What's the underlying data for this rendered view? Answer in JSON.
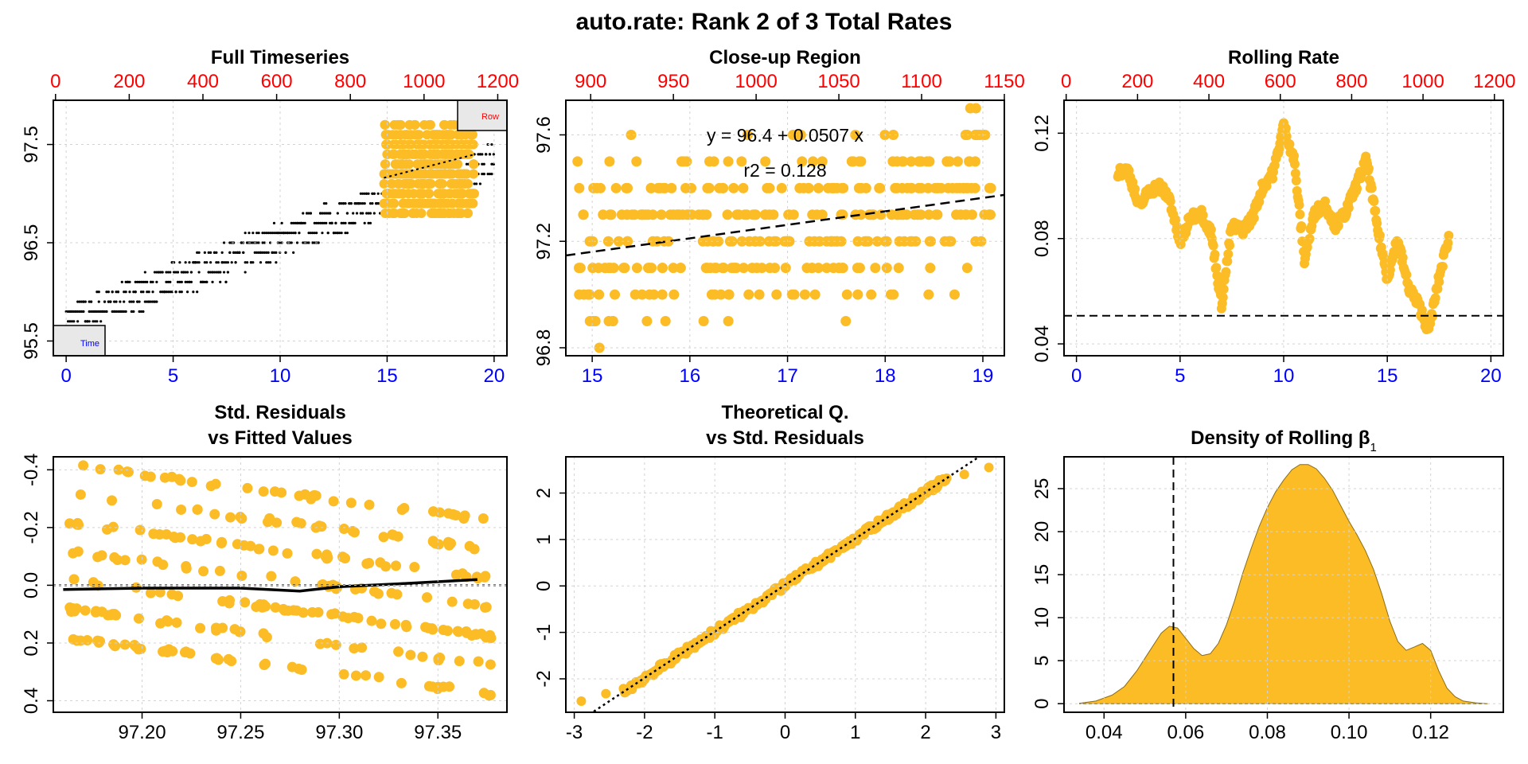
{
  "page": {
    "title": "auto.rate: Rank 2 of 3 Total Rates",
    "colors": {
      "points": "#FBBC26",
      "raw": "#000000",
      "top_axis": "#ff0000",
      "bottom_axis": "#0000ff",
      "grid": "#d3d3d3"
    }
  },
  "chart_data": [
    {
      "id": "full_timeseries",
      "type": "scatter",
      "title": "Full Timeseries",
      "xlabel": "",
      "ylabel": "",
      "xlim": [
        -0.6,
        20.6
      ],
      "ylim": [
        95.35,
        97.95
      ],
      "top_xlim": [
        -6,
        1225
      ],
      "xticks": [
        0,
        5,
        10,
        15,
        20
      ],
      "yticks": [
        95.5,
        96.5,
        97.5
      ],
      "top_ticks": [
        0,
        200,
        400,
        600,
        800,
        1000,
        1200
      ],
      "grid": true,
      "legend": {
        "top_right": "Row",
        "bottom_left": "Time"
      },
      "raw_series": {
        "name": "",
        "x_range": [
          0,
          20
        ],
        "y_start": 95.7,
        "y_end": 97.35,
        "y_spread": 0.35,
        "step": 0.1
      },
      "subset_series": {
        "name": "",
        "x_range": [
          14.85,
          19.1
        ],
        "y_range": [
          96.8,
          97.7
        ]
      },
      "fit_line": {
        "x": [
          14.85,
          19.1
        ],
        "y": [
          97.16,
          97.4
        ],
        "style": "dotted"
      }
    },
    {
      "id": "closeup_region",
      "type": "scatter",
      "title": "Close-up Region",
      "xlim": [
        14.73,
        19.22
      ],
      "ylim": [
        96.77,
        97.73
      ],
      "top_xlim": [
        885,
        1150
      ],
      "xticks": [
        15,
        16,
        17,
        18,
        19
      ],
      "yticks": [
        96.8,
        97.2,
        97.6
      ],
      "top_ticks": [
        900,
        950,
        1000,
        1050,
        1100,
        1150
      ],
      "grid": true,
      "x_range": [
        14.85,
        19.1
      ],
      "y_levels": [
        96.8,
        96.9,
        97.0,
        97.1,
        97.2,
        97.3,
        97.4,
        97.5,
        97.6,
        97.7
      ],
      "annotations": [
        "y = 96.4 + 0.0507 x",
        "r2 = 0.128"
      ],
      "fit_line": {
        "intercept": 96.4,
        "slope": 0.0507,
        "style": "dashed"
      }
    },
    {
      "id": "rolling_rate",
      "type": "line",
      "title": "Rolling Rate",
      "xlim": [
        -0.6,
        20.6
      ],
      "ylim": [
        0.0355,
        0.1325
      ],
      "top_xlim": [
        -6,
        1225
      ],
      "xticks": [
        0,
        5,
        10,
        15,
        20
      ],
      "yticks": [
        0.04,
        0.08,
        0.12
      ],
      "top_ticks": [
        0,
        200,
        400,
        600,
        800,
        1000,
        1200
      ],
      "grid": true,
      "x": [
        2.0,
        2.5,
        3.0,
        3.5,
        4.0,
        4.5,
        5.0,
        5.5,
        6.0,
        6.5,
        7.0,
        7.5,
        8.0,
        8.5,
        9.0,
        9.5,
        10.0,
        10.5,
        11.0,
        11.5,
        12.0,
        12.5,
        13.0,
        13.5,
        14.0,
        14.5,
        15.0,
        15.5,
        16.0,
        16.5,
        17.0,
        17.5,
        18.0
      ],
      "y": [
        0.105,
        0.106,
        0.092,
        0.098,
        0.1,
        0.095,
        0.078,
        0.088,
        0.09,
        0.082,
        0.055,
        0.085,
        0.083,
        0.088,
        0.1,
        0.105,
        0.123,
        0.11,
        0.072,
        0.09,
        0.093,
        0.085,
        0.09,
        0.1,
        0.11,
        0.085,
        0.065,
        0.08,
        0.062,
        0.055,
        0.045,
        0.065,
        0.082
      ],
      "reference_line": {
        "y": 0.0507,
        "style": "dashed"
      }
    },
    {
      "id": "residuals_vs_fitted",
      "type": "scatter",
      "title": "Std. Residuals\nvs Fitted Values",
      "xlim": [
        97.155,
        97.385
      ],
      "ylim": [
        0.44,
        -0.445
      ],
      "xticks": [
        97.2,
        97.25,
        97.3,
        97.35
      ],
      "xtick_labels": [
        "97.20",
        "97.25",
        "97.30",
        "97.35"
      ],
      "yticks": [
        -0.4,
        -0.2,
        0.0,
        0.2,
        0.4
      ],
      "ytick_labels": [
        "-0.4",
        "-0.2",
        "0.0",
        "0.2",
        "0.4"
      ],
      "grid": true,
      "band_offsets": [
        -0.32,
        -0.22,
        -0.12,
        -0.02,
        0.08,
        0.18,
        0.28
      ],
      "smooth_line": {
        "x": [
          97.16,
          97.2,
          97.25,
          97.28,
          97.3,
          97.33,
          97.37
        ],
        "y": [
          0.015,
          0.01,
          0.01,
          0.02,
          0.005,
          -0.005,
          -0.02
        ]
      },
      "zero_line": {
        "y": 0.0,
        "style": "dotted"
      }
    },
    {
      "id": "qq_plot",
      "type": "scatter",
      "title": "Theoretical Q.\nvs Std. Residuals",
      "xlim": [
        -3.12,
        3.12
      ],
      "ylim": [
        -2.72,
        2.78
      ],
      "xticks": [
        -3,
        -2,
        -1,
        0,
        1,
        2,
        3
      ],
      "yticks": [
        -2,
        -1,
        0,
        1,
        2
      ],
      "grid": true,
      "x_range": [
        -2.9,
        2.9
      ],
      "end_points": [
        [
          -2.9,
          -2.48
        ],
        [
          -2.55,
          -2.32
        ],
        [
          2.55,
          2.4
        ],
        [
          2.9,
          2.55
        ]
      ],
      "reference_line": {
        "intercept": 0.02,
        "slope": 1.0,
        "style": "dotted"
      }
    },
    {
      "id": "density_rolling_beta",
      "type": "area",
      "title": "Density of Rolling β",
      "title_subscript": "1",
      "xlim": [
        0.0302,
        0.1378
      ],
      "ylim": [
        -1.0,
        28.7
      ],
      "xticks": [
        0.04,
        0.06,
        0.08,
        0.1,
        0.12
      ],
      "xtick_labels": [
        "0.04",
        "0.06",
        "0.08",
        "0.10",
        "0.12"
      ],
      "yticks": [
        0,
        5,
        10,
        15,
        20,
        25
      ],
      "grid": true,
      "x": [
        0.034,
        0.038,
        0.042,
        0.045,
        0.048,
        0.051,
        0.054,
        0.056,
        0.058,
        0.06,
        0.062,
        0.064,
        0.066,
        0.068,
        0.07,
        0.072,
        0.074,
        0.076,
        0.078,
        0.08,
        0.082,
        0.084,
        0.086,
        0.088,
        0.09,
        0.092,
        0.094,
        0.096,
        0.098,
        0.1,
        0.102,
        0.104,
        0.106,
        0.108,
        0.11,
        0.112,
        0.114,
        0.116,
        0.118,
        0.12,
        0.122,
        0.124,
        0.126,
        0.128,
        0.131,
        0.134
      ],
      "y": [
        0.05,
        0.3,
        1.0,
        2.0,
        3.8,
        6.0,
        8.2,
        9.0,
        8.8,
        7.6,
        6.4,
        5.6,
        5.8,
        7.0,
        9.2,
        12.0,
        15.2,
        18.0,
        20.6,
        22.8,
        24.6,
        26.0,
        27.2,
        27.8,
        27.8,
        27.3,
        26.2,
        24.8,
        23.0,
        21.2,
        19.6,
        17.8,
        15.6,
        12.8,
        9.6,
        7.2,
        6.2,
        6.6,
        7.0,
        6.2,
        3.8,
        1.8,
        0.8,
        0.3,
        0.1,
        0.0
      ],
      "reference_line": {
        "x": 0.057,
        "style": "dashed"
      }
    }
  ]
}
